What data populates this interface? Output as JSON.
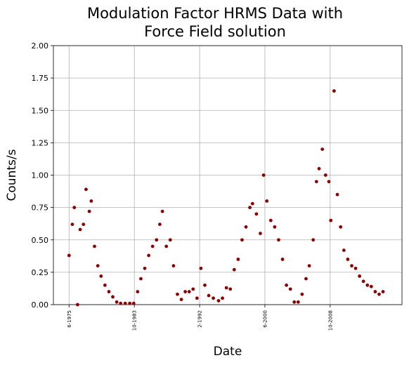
{
  "chart_data": {
    "type": "scatter",
    "title": "Modulation Factor HRMS Data with Force Field solution",
    "x_label": "Date",
    "y_label": "Counts/s",
    "color": "#8b0000",
    "grid": true,
    "xlim": [
      "6-1973",
      "12-2017"
    ],
    "xticks": [
      "6-1975",
      "10-1983",
      "2-1992",
      "6-2000",
      "10-2008"
    ],
    "ylim": [
      0,
      2
    ],
    "yticks": [
      {
        "value": 0,
        "label": "0.00"
      },
      {
        "value": 0.25,
        "label": "0.25"
      },
      {
        "value": 0.5,
        "label": "0.50"
      },
      {
        "value": 0.75,
        "label": "0.75"
      },
      {
        "value": 1,
        "label": "1.00"
      },
      {
        "value": 1.25,
        "label": "1.25"
      },
      {
        "value": 1.5,
        "label": "1.50"
      },
      {
        "value": 1.75,
        "label": "1.75"
      },
      {
        "value": 2,
        "label": "2.00"
      }
    ],
    "x": [
      "6-1975",
      "11-1975",
      "2-1976",
      "7-1976",
      "11-1976",
      "4-1977",
      "8-1977",
      "1-1978",
      "4-1978",
      "9-1978",
      "2-1979",
      "7-1979",
      "1-1980",
      "7-1980",
      "1-1981",
      "7-1981",
      "1-1982",
      "8-1982",
      "3-1983",
      "9-1983",
      "3-1984",
      "8-1984",
      "2-1985",
      "8-1985",
      "2-1986",
      "8-1986",
      "1-1987",
      "5-1987",
      "11-1987",
      "5-1988",
      "10-1988",
      "4-1989",
      "10-1989",
      "4-1990",
      "10-1990",
      "4-1991",
      "10-1991",
      "4-1992",
      "10-1992",
      "4-1993",
      "11-1993",
      "7-1994",
      "1-1995",
      "7-1995",
      "1-1996",
      "7-1996",
      "1-1997",
      "7-1997",
      "1-1998",
      "7-1998",
      "11-1998",
      "5-1999",
      "11-1999",
      "4-2000",
      "9-2000",
      "3-2001",
      "9-2001",
      "3-2002",
      "9-2002",
      "3-2003",
      "9-2003",
      "3-2004",
      "9-2004",
      "3-2005",
      "9-2005",
      "2-2006",
      "8-2006",
      "1-2007",
      "5-2007",
      "10-2007",
      "3-2008",
      "8-2008",
      "11-2008",
      "4-2009",
      "9-2009",
      "2-2010",
      "7-2010",
      "1-2011",
      "7-2011",
      "1-2012",
      "7-2012",
      "1-2013",
      "7-2013",
      "1-2014",
      "7-2014",
      "1-2015",
      "7-2015"
    ],
    "values": [
      0.38,
      0.62,
      0.75,
      0.0,
      0.58,
      0.62,
      0.89,
      0.72,
      0.8,
      0.45,
      0.3,
      0.22,
      0.15,
      0.1,
      0.06,
      0.02,
      0.01,
      0.01,
      0.01,
      0.01,
      0.1,
      0.2,
      0.28,
      0.38,
      0.45,
      0.5,
      0.62,
      0.72,
      0.45,
      0.5,
      0.3,
      0.08,
      0.04,
      0.1,
      0.1,
      0.12,
      0.05,
      0.28,
      0.15,
      0.07,
      0.05,
      0.03,
      0.05,
      0.13,
      0.12,
      0.27,
      0.35,
      0.5,
      0.6,
      0.75,
      0.78,
      0.7,
      0.55,
      1.0,
      0.8,
      0.65,
      0.6,
      0.5,
      0.35,
      0.15,
      0.12,
      0.02,
      0.02,
      0.08,
      0.2,
      0.3,
      0.5,
      0.95,
      1.05,
      1.2,
      1.0,
      0.95,
      0.65,
      1.65,
      0.85,
      0.6,
      0.42,
      0.35,
      0.3,
      0.28,
      0.22,
      0.18,
      0.15,
      0.14,
      0.1,
      0.08,
      0.1
    ]
  }
}
